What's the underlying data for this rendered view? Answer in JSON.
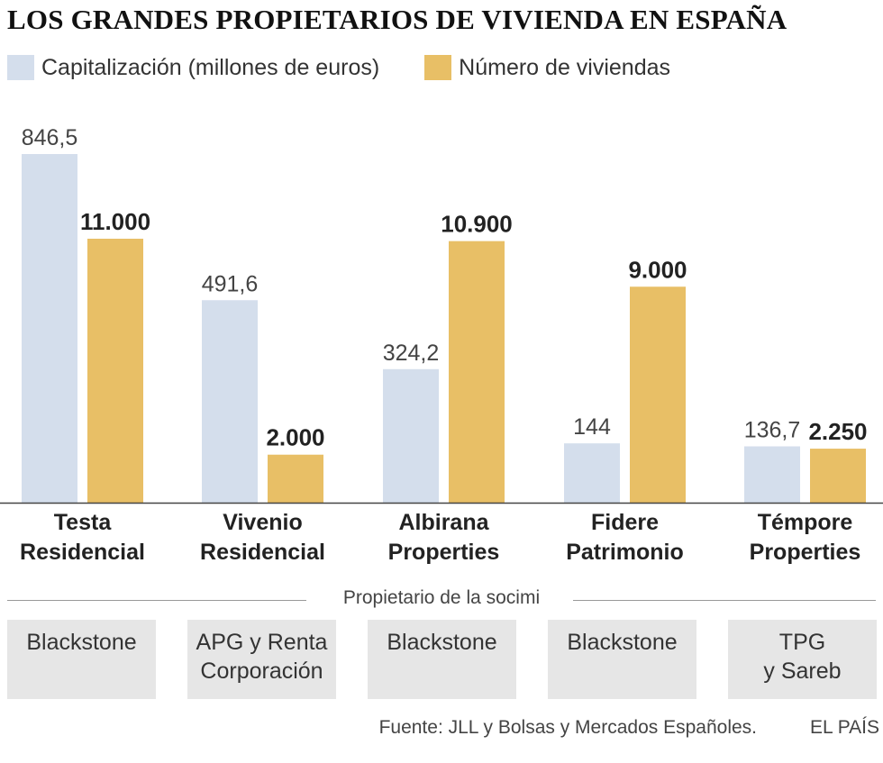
{
  "title": "LOS GRANDES PROPIETARIOS DE VIVIENDA EN ESPAÑA",
  "legend": [
    {
      "label": "Capitalización (millones de euros)",
      "color": "#d4deec"
    },
    {
      "label": "Número de viviendas",
      "color": "#e8bf66"
    }
  ],
  "chart_data": {
    "type": "bar",
    "categories": [
      "Testa Residencial",
      "Vivenio Residencial",
      "Albirana Properties",
      "Fidere Patrimonio",
      "Témpore Properties"
    ],
    "category_lines": [
      [
        "Testa",
        "Residencial"
      ],
      [
        "Vivenio",
        "Residencial"
      ],
      [
        "Albirana",
        "Properties"
      ],
      [
        "Fidere",
        "Patrimonio"
      ],
      [
        "Témpore",
        "Properties"
      ]
    ],
    "series": [
      {
        "name": "Capitalización (millones de euros)",
        "values": [
          846.5,
          491.6,
          324.2,
          144,
          136.7
        ],
        "labels": [
          "846,5",
          "491,6",
          "324,2",
          "144",
          "136,7"
        ],
        "color": "#d4deec"
      },
      {
        "name": "Número de viviendas",
        "values": [
          11000,
          2000,
          10900,
          9000,
          2250
        ],
        "labels": [
          "11.000",
          "2.000",
          "10.900",
          "9.000",
          "2.250"
        ],
        "color": "#e8bf66"
      }
    ],
    "grid": false
  },
  "owners_section": {
    "label": "Propietario de la socimi",
    "owners": [
      [
        "Blackstone"
      ],
      [
        "APG y Renta",
        "Corporación"
      ],
      [
        "Blackstone"
      ],
      [
        "Blackstone"
      ],
      [
        "TPG",
        "y Sareb"
      ]
    ]
  },
  "footer": {
    "source": "Fuente: JLL y Bolsas y Mercados Españoles.",
    "brand": "EL PAÍS"
  }
}
